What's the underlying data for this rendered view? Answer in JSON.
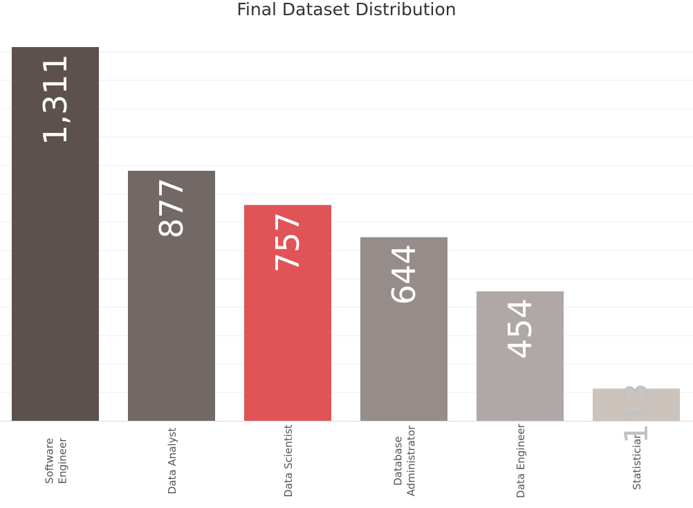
{
  "chart_data": {
    "type": "bar",
    "title": "Final Dataset Distribution",
    "categories": [
      "Software Engineer",
      "Data Analyst",
      "Data Scientist",
      "Database Administrator",
      "Data Engineer",
      "Statistician"
    ],
    "values": [
      1311,
      877,
      757,
      644,
      454,
      113
    ],
    "value_labels": [
      "1,311",
      "877",
      "757",
      "644",
      "454",
      "113"
    ],
    "bar_colors": [
      "#5c514d",
      "#726865",
      "#e05458",
      "#968d8a",
      "#b0a8a6",
      "#cdc3bd"
    ],
    "value_label_colors": [
      "#ffffff",
      "#ffffff",
      "#ffffff",
      "#ffffff",
      "#ffffff",
      "#c2c2c2"
    ],
    "xlabel": "",
    "ylabel": "",
    "ylim": [
      0,
      1311
    ],
    "grid": true
  }
}
